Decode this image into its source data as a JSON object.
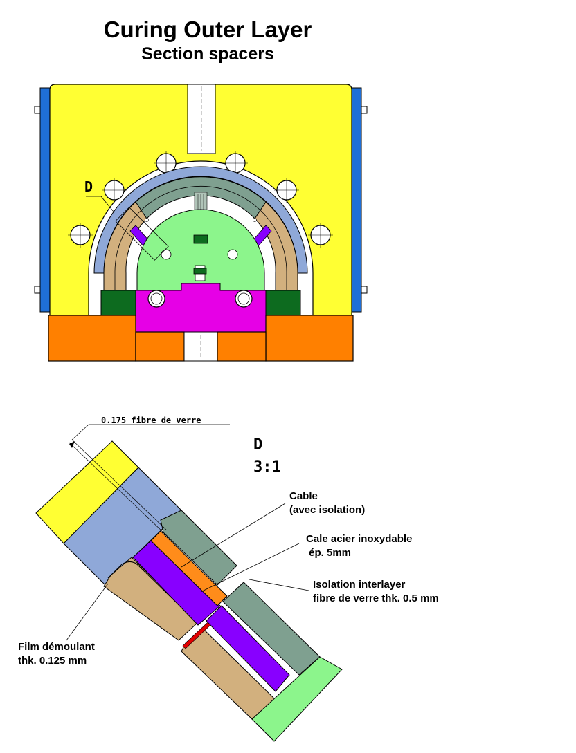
{
  "title": "Curing Outer Layer",
  "subtitle": "Section spacers",
  "detail_marker": "D",
  "detail_title": "D",
  "detail_scale": "3:1",
  "annotations": {
    "glass_fiber": "0.175 fibre de verre",
    "cable_line1": "Cable",
    "cable_line2": "(avec isolation)",
    "shim_line1": "Cale acier inoxydable",
    "shim_line2": " ép. 5mm",
    "interlayer_line1": "Isolation interlayer",
    "interlayer_line2": "fibre de verre thk. 0.5 mm",
    "film_line1": "Film démoulant",
    "film_line2": "thk. 0.125 mm"
  },
  "colors": {
    "yoke": "#ffff33",
    "end_plate": "#1f6fd6",
    "base": "#ff8000",
    "collar": "#8fa8d8",
    "coil": "#d2b07e",
    "cable_block": "#7fa090",
    "mandrel": "#8cf58c",
    "wedge": "#e600e6",
    "spacer": "#8800ff",
    "shim": "#ff8c1a",
    "pad": "#0d6b1f",
    "interlayer": "#e00000"
  }
}
